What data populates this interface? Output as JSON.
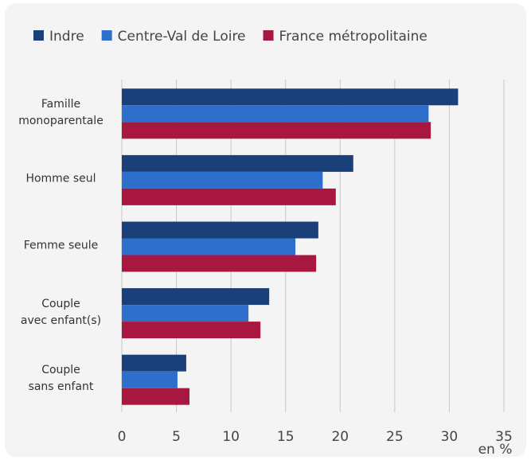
{
  "chart_data": {
    "type": "bar",
    "orientation": "horizontal",
    "categories": [
      "Famille\nmonoparentale",
      "Homme seul",
      "Femme seule",
      "Couple\navec enfant(s)",
      "Couple\nsans enfant"
    ],
    "series": [
      {
        "name": "Indre",
        "color": "#1b3f78",
        "values": [
          30.8,
          21.2,
          18.0,
          13.5,
          5.9
        ]
      },
      {
        "name": "Centre-Val de Loire",
        "color": "#2f6fcc",
        "values": [
          28.1,
          18.4,
          15.9,
          11.6,
          5.1
        ]
      },
      {
        "name": "France métropolitaine",
        "color": "#a8173f",
        "values": [
          28.3,
          19.6,
          17.8,
          12.7,
          6.2
        ]
      }
    ],
    "xlim": [
      0,
      35
    ],
    "xticks": [
      0,
      5,
      10,
      15,
      20,
      25,
      30,
      35
    ],
    "xlabel": "en %",
    "grid": true,
    "legend": "top"
  }
}
